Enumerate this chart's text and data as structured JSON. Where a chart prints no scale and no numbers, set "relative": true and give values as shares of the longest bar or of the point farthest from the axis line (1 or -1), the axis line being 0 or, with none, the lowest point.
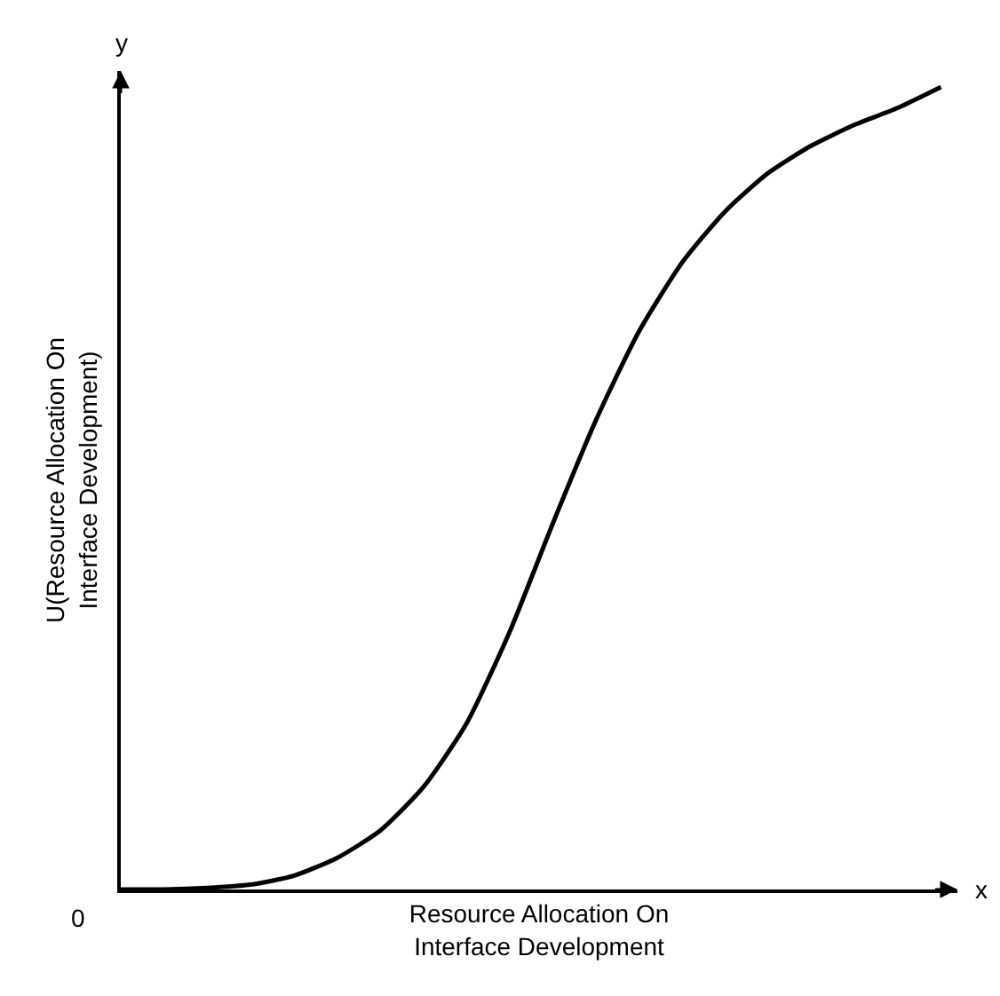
{
  "chart_data": {
    "type": "line",
    "relative": true,
    "xlabel": "Resource Allocation On\nInterface Development",
    "ylabel": "U(Resource Allocation On\nInterface Development)",
    "annotations": [
      "0",
      "x",
      "y"
    ],
    "categories": [
      null,
      null,
      null,
      null,
      null,
      null,
      null,
      null,
      null,
      null,
      null,
      null,
      null,
      null,
      null,
      null,
      null,
      null,
      null,
      null
    ],
    "series": [
      {
        "color": "#000000",
        "values": [
          0,
          0,
          0.002,
          0.006,
          0.017,
          0.039,
          0.073,
          0.127,
          0.206,
          0.32,
          0.455,
          0.584,
          0.695,
          0.781,
          0.845,
          0.893,
          0.927,
          0.953,
          0.974,
          1
        ]
      }
    ],
    "marker": "none",
    "line_style": "solid",
    "legend": false,
    "tick_labels": false
  }
}
